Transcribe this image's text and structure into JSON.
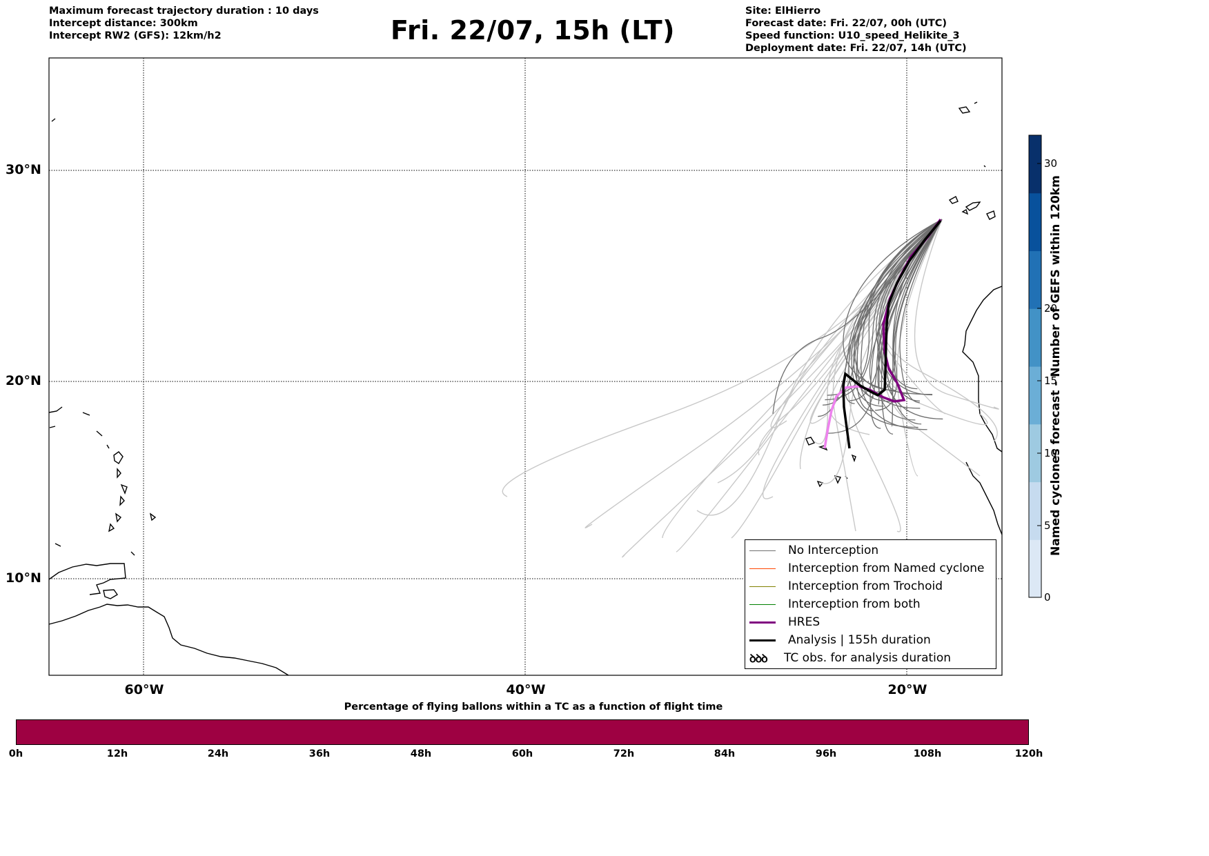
{
  "header": {
    "left_lines": [
      "Maximum forecast trajectory duration : 10 days",
      "Intercept distance: 300km",
      "Intercept RW2 (GFS):  12km/h2"
    ],
    "title": "Fri. 22/07, 15h (LT)",
    "right_lines": [
      "Site: ElHierro",
      "Forecast date: Fri. 22/07, 00h (UTC)",
      "Speed function: U10_speed_Helikite_3",
      "Deployment date: Fri. 22/07, 14h (UTC)"
    ]
  },
  "map": {
    "lat_labels": [
      "30°N",
      "20°N",
      "10°N"
    ],
    "lon_labels": [
      "60°W",
      "40°W",
      "20°W"
    ],
    "colors": {
      "no_interception": "#6e6e6e",
      "ensemble_far": "#c8c8c8",
      "hres": "#800080",
      "hres_light": "#ee82ee",
      "analysis": "#000000",
      "named_cyclone": "#ff4500",
      "trochoid": "#808000",
      "both": "#008000"
    }
  },
  "legend": {
    "items": [
      {
        "label": "No Interception",
        "color": "#6e6e6e",
        "width": 1.5
      },
      {
        "label": "Interception from Named cyclone",
        "color": "#ff4500",
        "width": 1.5
      },
      {
        "label": "Interception from Trochoid",
        "color": "#808000",
        "width": 1.5
      },
      {
        "label": "Interception from both",
        "color": "#008000",
        "width": 1.5
      },
      {
        "label": "HRES",
        "color": "#800080",
        "width": 3.5
      },
      {
        "label": "Analysis | 155h duration",
        "color": "#000000",
        "width": 3.5
      }
    ],
    "tc_symbol": "ꝺꝺꝺ",
    "tc_label": "TC obs. for analysis duration"
  },
  "colorbar": {
    "title": "Named cyclones forecast - Number of GEFS within 120km",
    "ticks": [
      "0",
      "5",
      "10",
      "15",
      "20",
      "30"
    ],
    "colors": [
      "#dce8f5",
      "#c6dbef",
      "#9ecae1",
      "#6baed6",
      "#4292c6",
      "#2171b5",
      "#08519c",
      "#08306b"
    ]
  },
  "bottom": {
    "title": "Percentage of flying ballons within a TC as a function of flight time",
    "bar_color": "#9e0142",
    "ticks": [
      "0h",
      "12h",
      "24h",
      "36h",
      "48h",
      "60h",
      "72h",
      "84h",
      "96h",
      "108h",
      "120h"
    ]
  }
}
